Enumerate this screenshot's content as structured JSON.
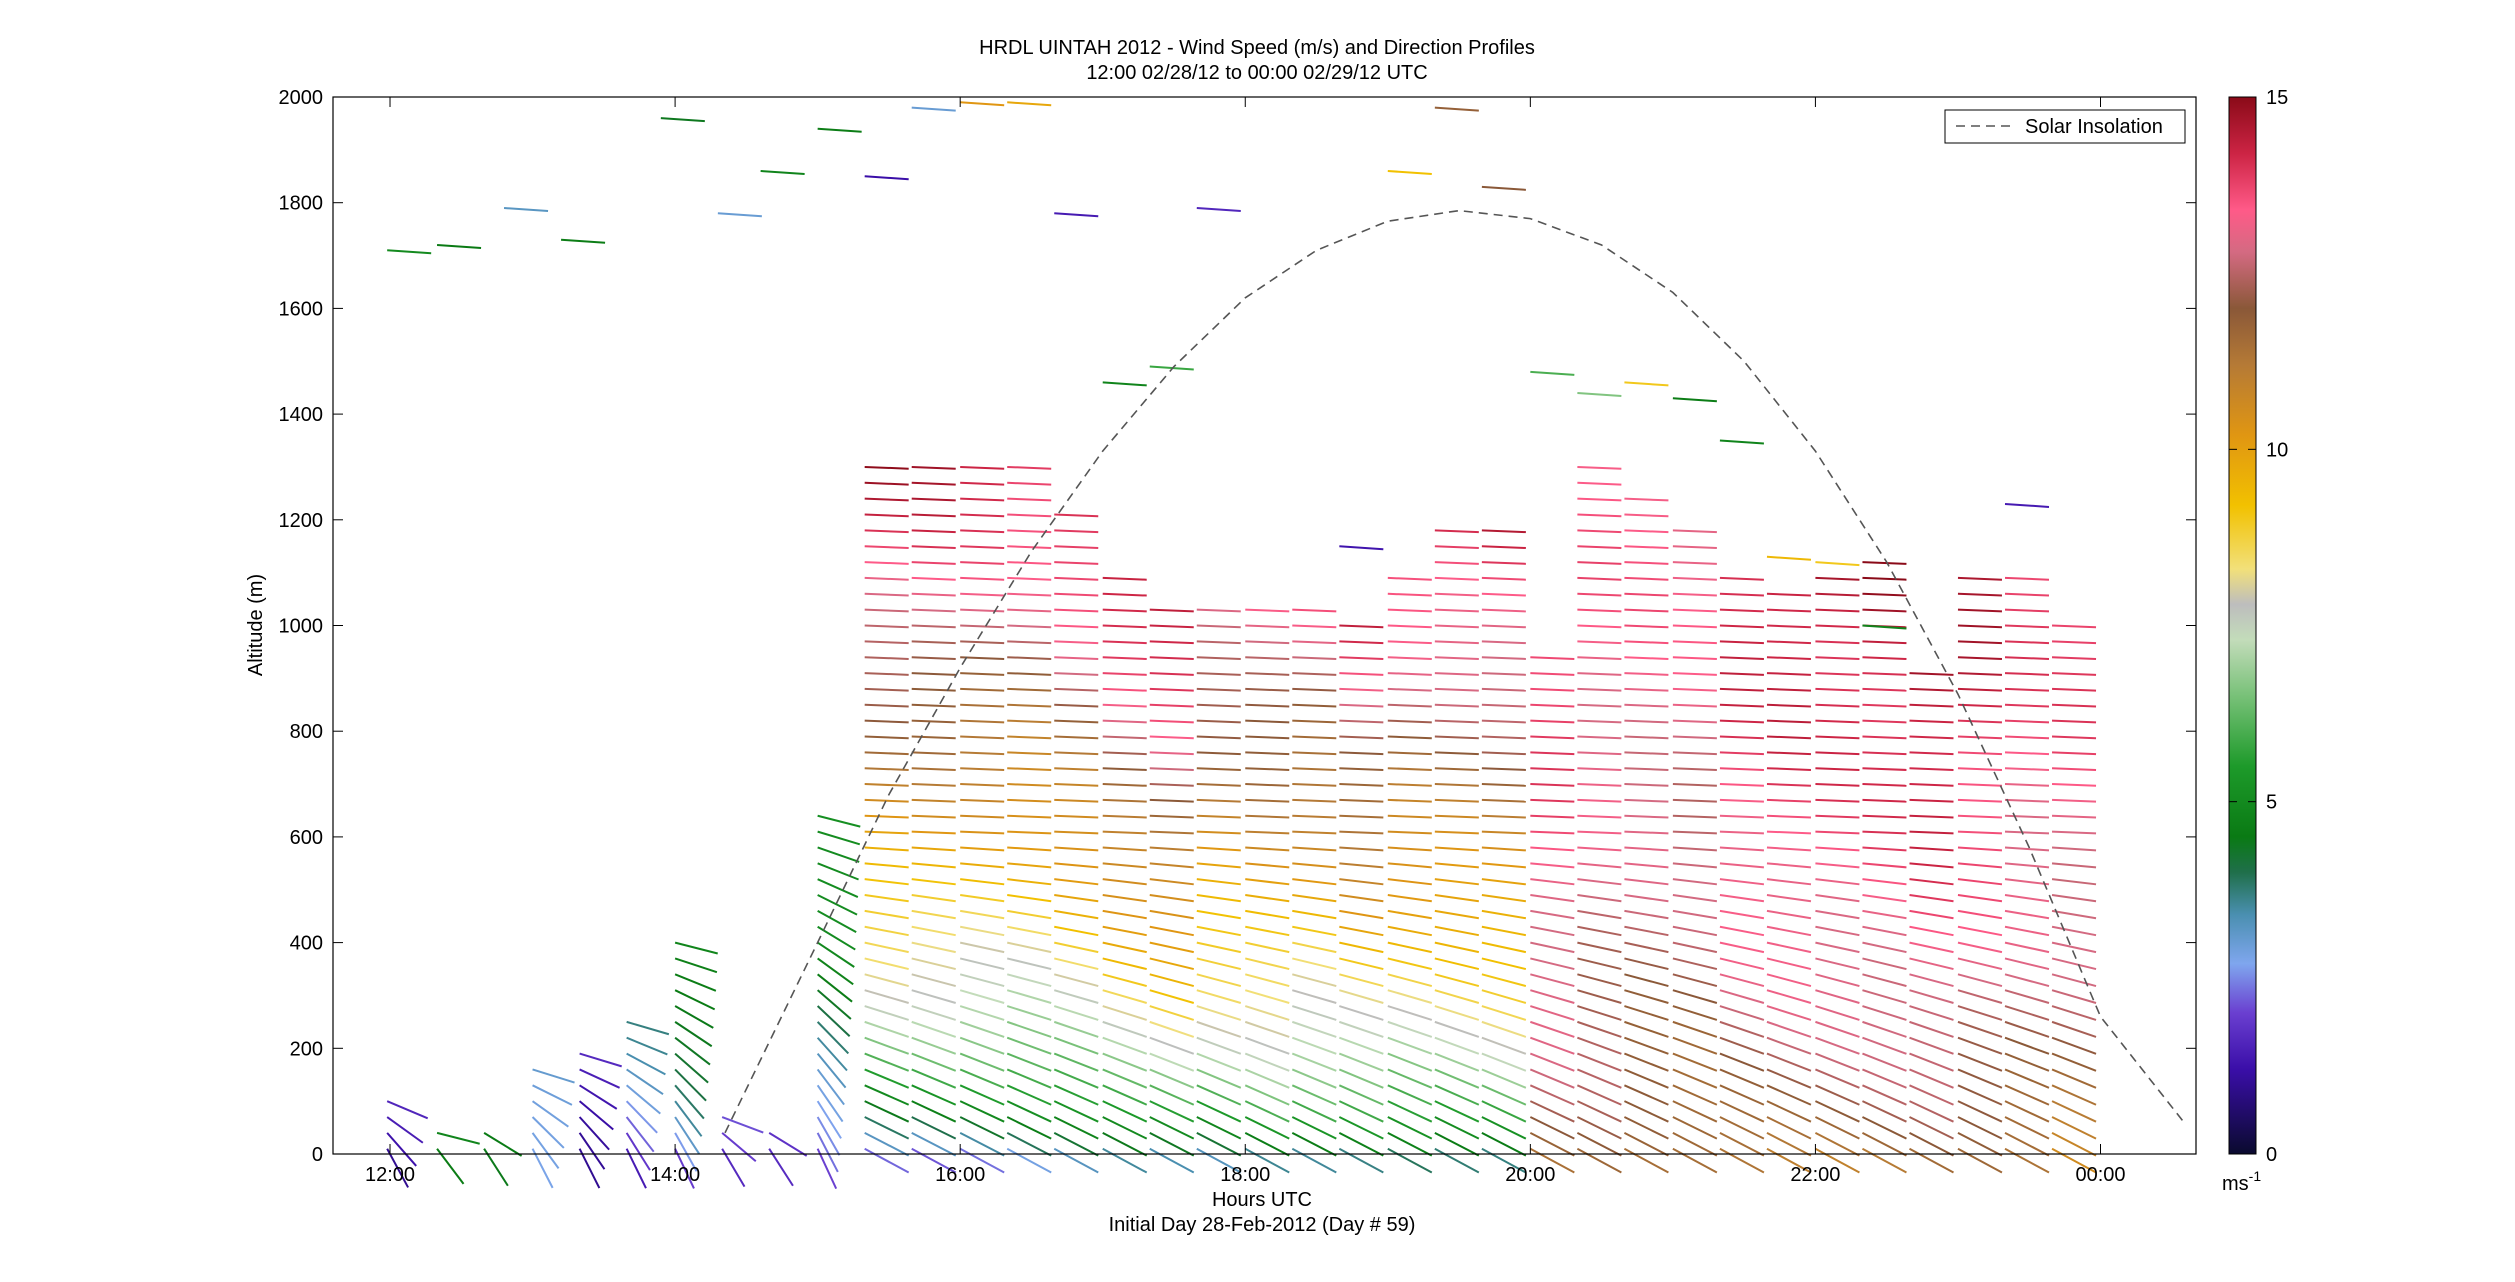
{
  "chart_data": {
    "type": "line",
    "title": "HRDL UINTAH 2012 - Wind Speed (m/s) and Direction Profiles",
    "subtitle": "12:00 02/28/12 to 00:00 02/29/12  UTC",
    "xlabel": "Hours UTC",
    "xlabel2": "Initial Day 28-Feb-2012 (Day # 59)",
    "ylabel": "Altitude (m)",
    "xlim": [
      11.6,
      24.67
    ],
    "ylim": [
      0,
      2000
    ],
    "xticks": [
      {
        "v": 12,
        "label": "12:00"
      },
      {
        "v": 14,
        "label": "14:00"
      },
      {
        "v": 16,
        "label": "16:00"
      },
      {
        "v": 18,
        "label": "18:00"
      },
      {
        "v": 20,
        "label": "20:00"
      },
      {
        "v": 22,
        "label": "22:00"
      },
      {
        "v": 24,
        "label": "00:00"
      }
    ],
    "yticks": [
      {
        "v": 0,
        "label": "0"
      },
      {
        "v": 200,
        "label": "200"
      },
      {
        "v": 400,
        "label": "400"
      },
      {
        "v": 600,
        "label": "600"
      },
      {
        "v": 800,
        "label": "800"
      },
      {
        "v": 1000,
        "label": "1000"
      },
      {
        "v": 1200,
        "label": "1200"
      },
      {
        "v": 1400,
        "label": "1400"
      },
      {
        "v": 1600,
        "label": "1600"
      },
      {
        "v": 1800,
        "label": "1800"
      },
      {
        "v": 2000,
        "label": "2000"
      }
    ],
    "legend": {
      "label": "Solar Insolation",
      "position": "top-right",
      "style": "dashed",
      "color": "#555555"
    },
    "solar_insolation": {
      "x": [
        14.35,
        15.0,
        15.5,
        16.0,
        16.5,
        17.0,
        17.5,
        18.0,
        18.5,
        19.0,
        19.5,
        20.0,
        20.5,
        21.0,
        21.5,
        22.0,
        22.5,
        23.0,
        23.5,
        24.0,
        24.6
      ],
      "y": [
        40,
        400,
        680,
        920,
        1140,
        1330,
        1490,
        1620,
        1710,
        1765,
        1785,
        1770,
        1720,
        1630,
        1500,
        1330,
        1120,
        870,
        580,
        260,
        55
      ]
    },
    "colorbar": {
      "min": 0,
      "max": 15,
      "ticks": [
        {
          "v": 0,
          "label": "0"
        },
        {
          "v": 5,
          "label": "5"
        },
        {
          "v": 10,
          "label": "10"
        },
        {
          "v": 15,
          "label": "15"
        }
      ],
      "unit_label": "ms",
      "unit_exponent": "-1",
      "stops": [
        {
          "v": 0,
          "color": "#0a0a2e"
        },
        {
          "v": 1.2,
          "color": "#3a0ea8"
        },
        {
          "v": 2.0,
          "color": "#6a3fd0"
        },
        {
          "v": 2.7,
          "color": "#7fa6ee"
        },
        {
          "v": 3.4,
          "color": "#4a8fb0"
        },
        {
          "v": 4.0,
          "color": "#1f6f4a"
        },
        {
          "v": 4.5,
          "color": "#0a7a14"
        },
        {
          "v": 5.5,
          "color": "#1d9a2a"
        },
        {
          "v": 6.5,
          "color": "#78c178"
        },
        {
          "v": 7.3,
          "color": "#c3dcba"
        },
        {
          "v": 7.8,
          "color": "#bdbdbd"
        },
        {
          "v": 8.3,
          "color": "#f2e07a"
        },
        {
          "v": 9.2,
          "color": "#f2c100"
        },
        {
          "v": 10.2,
          "color": "#e09612"
        },
        {
          "v": 11.2,
          "color": "#b57a36"
        },
        {
          "v": 12.0,
          "color": "#8a5838"
        },
        {
          "v": 12.8,
          "color": "#d46a82"
        },
        {
          "v": 13.4,
          "color": "#ff5a88"
        },
        {
          "v": 14.2,
          "color": "#cc2444"
        },
        {
          "v": 15.0,
          "color": "#8a0a18"
        }
      ]
    },
    "profiles": [
      {
        "t": 11.98,
        "top": 120,
        "lo": 0.8,
        "hi": 1.3
      },
      {
        "t": 12.33,
        "top": 40,
        "lo": 4.0,
        "hi": 4.5
      },
      {
        "t": 12.66,
        "top": 60,
        "lo": 4.0,
        "hi": 4.4
      },
      {
        "t": 13.0,
        "top": 170,
        "lo": 2.6,
        "hi": 3.4
      },
      {
        "t": 13.33,
        "top": 200,
        "lo": 1.2,
        "hi": 1.6
      },
      {
        "t": 13.66,
        "top": 260,
        "lo": 1.4,
        "hi": 3.4
      },
      {
        "t": 14.0,
        "top": 400,
        "lo": 1.5,
        "hi": 5.2
      },
      {
        "t": 14.33,
        "top": 80,
        "lo": 1.2,
        "hi": 1.8
      },
      {
        "t": 14.66,
        "top": 60,
        "lo": 1.2,
        "hi": 1.6
      },
      {
        "t": 15.0,
        "top": 640,
        "lo": 1.5,
        "hi": 5.5
      },
      {
        "t": 15.33,
        "top": 1300,
        "lo": 1.6,
        "hi": 14.6
      },
      {
        "t": 15.66,
        "top": 1300,
        "lo": 1.6,
        "hi": 14.6
      },
      {
        "t": 16.0,
        "top": 1300,
        "lo": 1.6,
        "hi": 14.4
      },
      {
        "t": 16.33,
        "top": 1300,
        "lo": 1.8,
        "hi": 14.2
      },
      {
        "t": 16.66,
        "top": 1220,
        "lo": 2.0,
        "hi": 14.4
      },
      {
        "t": 17.0,
        "top": 1100,
        "lo": 2.4,
        "hi": 14.6
      },
      {
        "t": 17.33,
        "top": 1050,
        "lo": 2.6,
        "hi": 14.8
      },
      {
        "t": 17.66,
        "top": 1030,
        "lo": 2.8,
        "hi": 13.2
      },
      {
        "t": 18.0,
        "top": 1040,
        "lo": 3.0,
        "hi": 13.4
      },
      {
        "t": 18.33,
        "top": 1050,
        "lo": 2.6,
        "hi": 13.4
      },
      {
        "t": 18.66,
        "top": 1000,
        "lo": 2.4,
        "hi": 14.0
      },
      {
        "t": 19.0,
        "top": 1100,
        "lo": 2.8,
        "hi": 13.8
      },
      {
        "t": 19.33,
        "top": 1180,
        "lo": 3.0,
        "hi": 14.2
      },
      {
        "t": 19.66,
        "top": 1200,
        "lo": 3.2,
        "hi": 14.4
      },
      {
        "t": 20.0,
        "top": 940,
        "lo": 11.5,
        "hi": 14.0
      },
      {
        "t": 20.33,
        "top": 1300,
        "lo": 11.5,
        "hi": 13.6
      },
      {
        "t": 20.66,
        "top": 1240,
        "lo": 11.0,
        "hi": 13.6
      },
      {
        "t": 21.0,
        "top": 1200,
        "lo": 11.0,
        "hi": 13.4
      },
      {
        "t": 21.33,
        "top": 1100,
        "lo": 11.0,
        "hi": 14.4
      },
      {
        "t": 21.66,
        "top": 1080,
        "lo": 11.0,
        "hi": 14.6
      },
      {
        "t": 22.0,
        "top": 1100,
        "lo": 11.0,
        "hi": 14.6
      },
      {
        "t": 22.33,
        "top": 1140,
        "lo": 11.0,
        "hi": 14.8
      },
      {
        "t": 22.66,
        "top": 920,
        "lo": 11.0,
        "hi": 14.8
      },
      {
        "t": 23.0,
        "top": 1090,
        "lo": 11.0,
        "hi": 14.6
      },
      {
        "t": 23.33,
        "top": 1090,
        "lo": 11.0,
        "hi": 14.0
      },
      {
        "t": 23.66,
        "top": 1000,
        "lo": 10.5,
        "hi": 14.0
      }
    ],
    "scattered_barbs": [
      {
        "t": 11.98,
        "z": 1710,
        "s": 5.0
      },
      {
        "t": 12.33,
        "z": 1720,
        "s": 4.5
      },
      {
        "t": 12.8,
        "z": 1790,
        "s": 3.2
      },
      {
        "t": 13.2,
        "z": 1730,
        "s": 4.6
      },
      {
        "t": 13.9,
        "z": 1960,
        "s": 4.4
      },
      {
        "t": 14.3,
        "z": 1780,
        "s": 3.0
      },
      {
        "t": 14.6,
        "z": 1860,
        "s": 4.8
      },
      {
        "t": 15.0,
        "z": 1940,
        "s": 4.6
      },
      {
        "t": 15.33,
        "z": 1850,
        "s": 1.2
      },
      {
        "t": 15.66,
        "z": 1980,
        "s": 3.0
      },
      {
        "t": 16.0,
        "z": 1990,
        "s": 10.2
      },
      {
        "t": 16.33,
        "z": 1990,
        "s": 9.8
      },
      {
        "t": 16.66,
        "z": 1780,
        "s": 1.4
      },
      {
        "t": 17.0,
        "z": 1460,
        "s": 4.8
      },
      {
        "t": 17.33,
        "z": 1490,
        "s": 5.8
      },
      {
        "t": 17.66,
        "z": 1790,
        "s": 1.6
      },
      {
        "t": 18.66,
        "z": 1150,
        "s": 1.3
      },
      {
        "t": 19.0,
        "z": 1860,
        "s": 9.2
      },
      {
        "t": 19.33,
        "z": 1980,
        "s": 11.8
      },
      {
        "t": 19.66,
        "z": 1830,
        "s": 12.0
      },
      {
        "t": 20.0,
        "z": 1480,
        "s": 6.0
      },
      {
        "t": 20.33,
        "z": 1440,
        "s": 6.6
      },
      {
        "t": 20.66,
        "z": 1460,
        "s": 9.0
      },
      {
        "t": 21.0,
        "z": 1430,
        "s": 4.6
      },
      {
        "t": 21.33,
        "z": 1350,
        "s": 4.8
      },
      {
        "t": 21.66,
        "z": 1130,
        "s": 9.4
      },
      {
        "t": 22.0,
        "z": 1120,
        "s": 9.0
      },
      {
        "t": 22.33,
        "z": 1000,
        "s": 4.8
      },
      {
        "t": 23.33,
        "z": 1230,
        "s": 1.4
      }
    ]
  }
}
